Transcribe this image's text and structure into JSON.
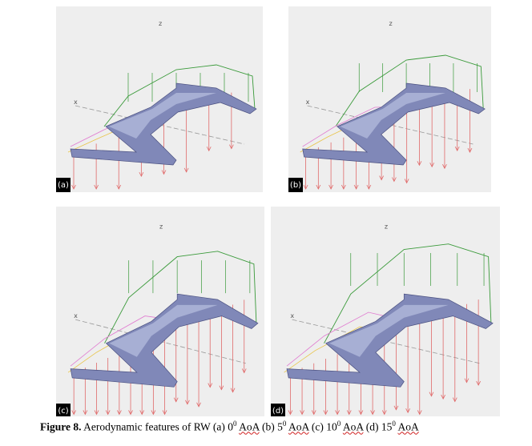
{
  "figure": {
    "panels": [
      {
        "label": "(a)",
        "axis_z": "z",
        "axis_x": "x"
      },
      {
        "label": "(b)",
        "axis_z": "z",
        "axis_x": "x"
      },
      {
        "label": "(c)",
        "axis_z": "z",
        "axis_x": "x"
      },
      {
        "label": "(d)",
        "axis_z": "z",
        "axis_x": "x"
      }
    ],
    "caption": {
      "label": "Figure 8.",
      "intro": "Aerodynamic features of RW",
      "items": [
        {
          "prefix": "(a)",
          "angle": "0",
          "sup": "0",
          "unit": "AoA"
        },
        {
          "prefix": "(b)",
          "angle": "5",
          "sup": "0",
          "unit": "AoA"
        },
        {
          "prefix": "(c)",
          "angle": "10",
          "sup": "0",
          "unit": "AoA"
        },
        {
          "prefix": "(d)",
          "angle": "15",
          "sup": "0",
          "unit": "AoA"
        }
      ]
    }
  }
}
